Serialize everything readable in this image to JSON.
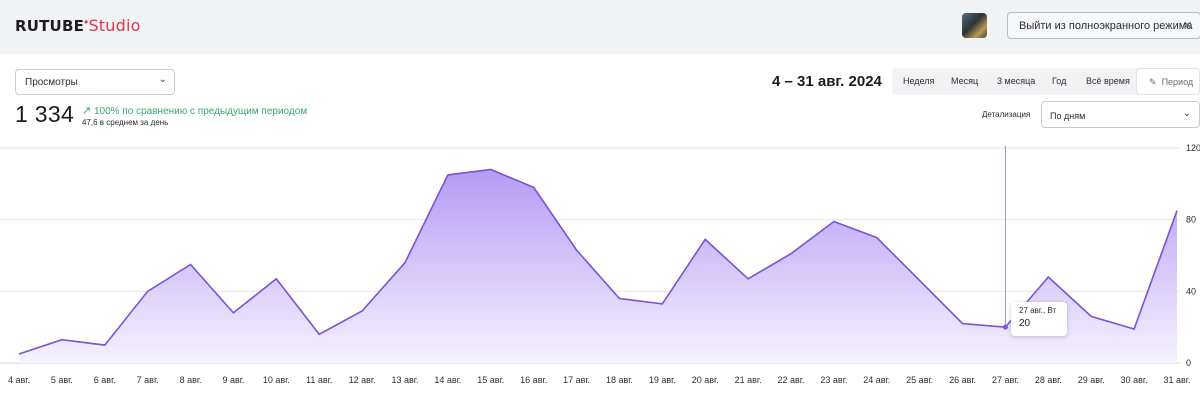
{
  "header": {
    "logo_brand": "RUTUBE",
    "logo_dot": "•",
    "logo_studio": "Studio",
    "exit_fullscreen_label": "Выйти из полноэкранного режима",
    "close_icon": "×"
  },
  "metric_select": {
    "value": "Просмотры",
    "icon": "chevron-down"
  },
  "summary": {
    "total": "1 334",
    "comparison": "100% по сравнению с предыдущим периодом",
    "comparison_icon": "↗",
    "average": "47,6 в среднем за день"
  },
  "date_range": "4 – 31 авг. 2024",
  "period_tabs": {
    "week": "Неделя",
    "month": "Месяц",
    "three_months": "3 месяца",
    "year": "Год",
    "all_time": "Всё время",
    "custom": "Период"
  },
  "detail": {
    "label": "Детализация",
    "value": "По дням"
  },
  "colors": {
    "line": "#7b52d9",
    "area_top": "#b69bf5",
    "area_bottom": "#f6f2fe",
    "accent_red": "#e8334a",
    "positive": "#3aa86d"
  },
  "chart_data": {
    "type": "area",
    "categories": [
      "4 авг.",
      "5 авг.",
      "6 авг.",
      "7 авг.",
      "8 авг.",
      "9 авг.",
      "10 авг.",
      "11 авг.",
      "12 авг.",
      "13 авг.",
      "14 авг.",
      "15 авг.",
      "16 авг.",
      "17 авг.",
      "18 авг.",
      "19 авг.",
      "20 авг.",
      "21 авг.",
      "22 авг.",
      "23 авг.",
      "24 авг.",
      "25 авг.",
      "26 авг.",
      "27 авг.",
      "28 авг.",
      "29 авг.",
      "30 авг.",
      "31 авг."
    ],
    "values": [
      5,
      13,
      10,
      40,
      55,
      28,
      47,
      16,
      29,
      56,
      105,
      108,
      98,
      63,
      36,
      33,
      69,
      47,
      61,
      79,
      70,
      46,
      22,
      20,
      48,
      26,
      19,
      85
    ],
    "yticks": [
      0,
      40,
      80,
      120
    ],
    "ylim": [
      0,
      120
    ],
    "grid": true,
    "tooltip": {
      "date": "27 авг., Вт",
      "value": "20"
    }
  }
}
